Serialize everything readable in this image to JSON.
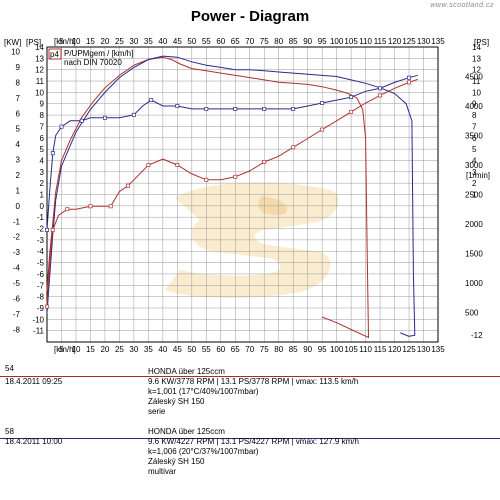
{
  "header": {
    "title": "Power - Diagram",
    "watermark": "www.scootland.cz"
  },
  "chart_data": {
    "type": "line",
    "title": "Power - Diagram",
    "legend": {
      "marker": "p4",
      "line1": "P/UPMgem / [km/h]",
      "line2": "nach DIN 70020",
      "placement": "top-left"
    },
    "x": {
      "label": "[km/h]",
      "ticks": [
        0,
        5,
        10,
        15,
        20,
        25,
        30,
        35,
        40,
        45,
        50,
        55,
        60,
        65,
        70,
        75,
        80,
        85,
        90,
        95,
        100,
        105,
        110,
        115,
        120,
        125,
        130,
        135
      ],
      "range": [
        0,
        135
      ]
    },
    "y_left": {
      "kw_label": "[KW]",
      "ps_label": "[PS]",
      "kw_ticks": [
        10,
        9,
        8,
        7,
        6,
        5,
        4,
        3,
        2,
        1,
        0,
        -1,
        -2,
        -3,
        -4,
        -5,
        -6,
        -7,
        -8
      ],
      "ps_ticks": [
        14,
        13,
        12,
        11,
        10,
        9,
        8,
        7,
        6,
        5,
        4,
        3,
        2,
        1,
        0,
        -1,
        -2,
        -3,
        -4,
        -5,
        -6,
        -7,
        -8,
        -9,
        -10,
        -11
      ],
      "ps_range": [
        -12,
        14
      ]
    },
    "y_right": {
      "ps_label": "[PS]",
      "rpm_label": "[1/min]",
      "ps_ticks": [
        14,
        13,
        12,
        11,
        10,
        9,
        8,
        7,
        6,
        5,
        4,
        3,
        2,
        1
      ],
      "rpm_ticks": [
        4500,
        4000,
        3500,
        3000,
        2500,
        2000,
        1500,
        1000,
        500
      ],
      "rpm_range": [
        0,
        5000
      ],
      "bottom": "-12"
    },
    "grid": true,
    "series": [
      {
        "name": "54",
        "color": "#b03030",
        "kind": "power",
        "points": [
          [
            0,
            -7.5
          ],
          [
            1,
            -4
          ],
          [
            2,
            -1.5
          ],
          [
            3,
            1.2
          ],
          [
            5,
            4
          ],
          [
            8,
            5.8
          ],
          [
            12,
            7.8
          ],
          [
            16,
            9.2
          ],
          [
            20,
            10.4
          ],
          [
            25,
            11.5
          ],
          [
            30,
            12.4
          ],
          [
            35,
            12.9
          ],
          [
            40,
            13.1
          ],
          [
            43,
            12.9
          ],
          [
            46,
            12.5
          ],
          [
            50,
            12.1
          ],
          [
            55,
            11.9
          ],
          [
            60,
            11.7
          ],
          [
            65,
            11.5
          ],
          [
            70,
            11.3
          ],
          [
            75,
            11.1
          ],
          [
            80,
            10.9
          ],
          [
            85,
            10.8
          ],
          [
            90,
            10.7
          ],
          [
            95,
            10.5
          ],
          [
            100,
            10.2
          ],
          [
            104,
            9.9
          ],
          [
            107,
            9.5
          ],
          [
            109,
            8.5
          ],
          [
            110,
            6
          ],
          [
            110.5,
            -3
          ],
          [
            111,
            -11.6
          ],
          [
            105,
            -10.9
          ],
          [
            100,
            -10.3
          ],
          [
            95,
            -9.8
          ]
        ]
      },
      {
        "name": "58",
        "color": "#2a2a8a",
        "kind": "power",
        "points": [
          [
            0,
            -9.5
          ],
          [
            1,
            -6
          ],
          [
            2,
            -2.5
          ],
          [
            3,
            0.5
          ],
          [
            5,
            3.5
          ],
          [
            10,
            6.5
          ],
          [
            15,
            8.5
          ],
          [
            20,
            10
          ],
          [
            25,
            11.3
          ],
          [
            30,
            12.2
          ],
          [
            35,
            12.9
          ],
          [
            40,
            13.2
          ],
          [
            45,
            13.1
          ],
          [
            50,
            12.7
          ],
          [
            55,
            12.4
          ],
          [
            60,
            12.2
          ],
          [
            65,
            12
          ],
          [
            70,
            12
          ],
          [
            75,
            11.9
          ],
          [
            80,
            11.8
          ],
          [
            85,
            11.7
          ],
          [
            90,
            11.6
          ],
          [
            95,
            11.5
          ],
          [
            100,
            11.4
          ],
          [
            105,
            11.1
          ],
          [
            110,
            10.8
          ],
          [
            115,
            10.4
          ],
          [
            120,
            9.9
          ],
          [
            124,
            9
          ],
          [
            126,
            7.5
          ],
          [
            126.5,
            -6
          ],
          [
            127,
            -11.4
          ],
          [
            125,
            -11.5
          ],
          [
            122,
            -11.2
          ]
        ]
      },
      {
        "name": "54",
        "color": "#b03030",
        "kind": "rpm",
        "points": [
          [
            0,
            600
          ],
          [
            1,
            1400
          ],
          [
            2,
            1900
          ],
          [
            4,
            2150
          ],
          [
            7,
            2250
          ],
          [
            10,
            2250
          ],
          [
            15,
            2300
          ],
          [
            20,
            2300
          ],
          [
            22,
            2300
          ],
          [
            25,
            2550
          ],
          [
            28,
            2650
          ],
          [
            30,
            2750
          ],
          [
            35,
            3000
          ],
          [
            40,
            3100
          ],
          [
            45,
            3000
          ],
          [
            50,
            2850
          ],
          [
            55,
            2750
          ],
          [
            60,
            2750
          ],
          [
            65,
            2800
          ],
          [
            70,
            2900
          ],
          [
            75,
            3050
          ],
          [
            80,
            3150
          ],
          [
            85,
            3300
          ],
          [
            90,
            3450
          ],
          [
            95,
            3600
          ],
          [
            100,
            3750
          ],
          [
            105,
            3900
          ],
          [
            110,
            4050
          ],
          [
            115,
            4180
          ],
          [
            120,
            4300
          ],
          [
            125,
            4400
          ],
          [
            128,
            4450
          ]
        ]
      },
      {
        "name": "58",
        "color": "#2a2a8a",
        "kind": "rpm",
        "points": [
          [
            0,
            1900
          ],
          [
            1,
            2600
          ],
          [
            2,
            3200
          ],
          [
            3,
            3500
          ],
          [
            5,
            3650
          ],
          [
            8,
            3750
          ],
          [
            12,
            3750
          ],
          [
            15,
            3800
          ],
          [
            20,
            3800
          ],
          [
            25,
            3800
          ],
          [
            30,
            3850
          ],
          [
            33,
            4000
          ],
          [
            36,
            4100
          ],
          [
            40,
            4000
          ],
          [
            45,
            4000
          ],
          [
            50,
            3950
          ],
          [
            55,
            3950
          ],
          [
            60,
            3950
          ],
          [
            65,
            3950
          ],
          [
            70,
            3950
          ],
          [
            75,
            3950
          ],
          [
            80,
            3950
          ],
          [
            85,
            3950
          ],
          [
            90,
            4000
          ],
          [
            95,
            4050
          ],
          [
            100,
            4100
          ],
          [
            105,
            4150
          ],
          [
            110,
            4250
          ],
          [
            115,
            4300
          ],
          [
            120,
            4400
          ],
          [
            125,
            4480
          ],
          [
            128,
            4520
          ]
        ]
      }
    ]
  },
  "records": [
    {
      "id": "54",
      "date": "18.4.2011  09:25",
      "color": "#a03030",
      "lines": [
        "HONDA über 125ccm",
        "9.6 KW/3778 RPM  |  13.1 PS/3778 RPM  |  vmax: 113.5 km/h",
        "k=1,001 (17°C/40%/1007mbar)",
        "Záleský SH 150",
        "serie"
      ]
    },
    {
      "id": "58",
      "date": "18.4.2011  10:00",
      "color": "#2a2a8a",
      "lines": [
        "HONDA über 125ccm",
        "9.6 KW/4227 RPM  |  13.1 PS/4227 RPM  |  vmax: 127.9 km/h",
        "k=1,006 (20°C/37%/1007mbar)",
        "Záleský SH 150",
        "multivar"
      ]
    }
  ]
}
